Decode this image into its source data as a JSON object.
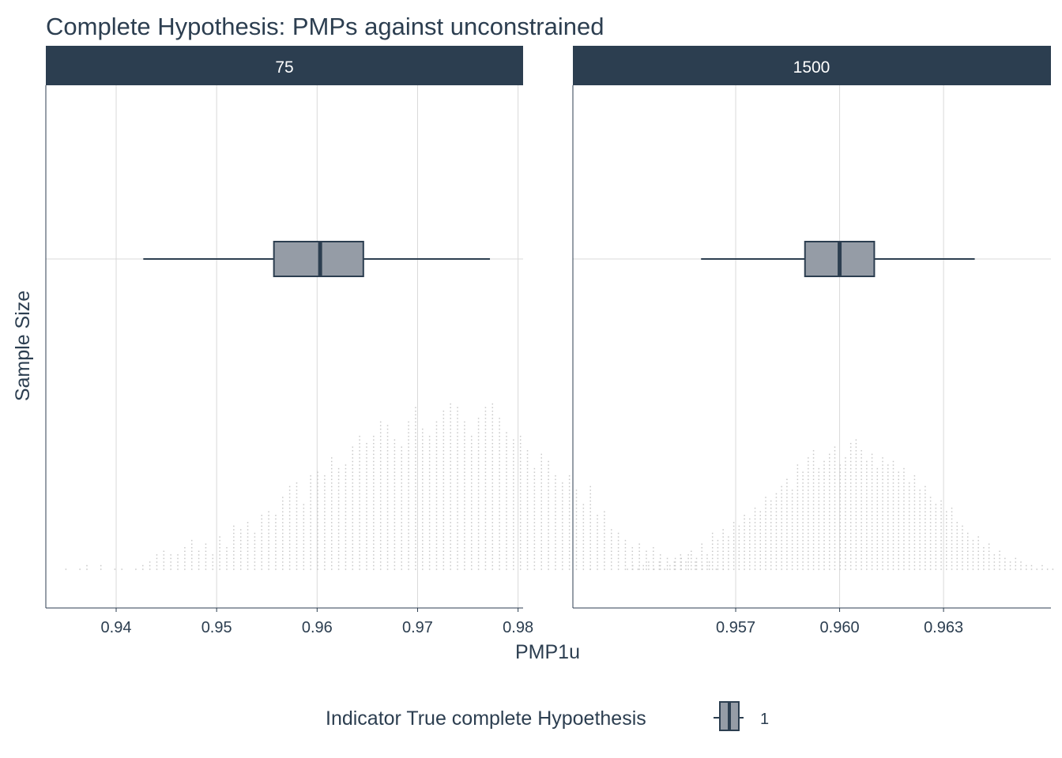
{
  "chart_data": {
    "type": "boxplot-dotplot",
    "title": "Complete Hypothesis: PMPs against unconstrained",
    "xlabel": "PMP1u",
    "ylabel": "Sample Size",
    "legend": {
      "title": "Indicator True complete Hypoethesis",
      "items": [
        {
          "label": "1",
          "color": "#959ca6"
        }
      ],
      "placement": "bottom"
    },
    "colors": {
      "strip": "#2c3e50",
      "box": "#959ca6",
      "dots": "#c8c8c8",
      "grid": "#d9d9d9",
      "text": "#2c3e50"
    },
    "panels": [
      {
        "strip_label": "75",
        "xlim": [
          0.933,
          0.9805
        ],
        "x_ticks": [
          0.94,
          0.95,
          0.96,
          0.97,
          0.98
        ],
        "x_tick_labels": [
          "0.94",
          "0.95",
          "0.96",
          "0.97",
          "0.98"
        ],
        "box": {
          "whisker_low": 0.9427,
          "q1": 0.9557,
          "median": 0.9603,
          "q3": 0.9646,
          "whisker_high": 0.9772
        },
        "dots": {
          "x_start": 0.935,
          "x_step": 0.000696,
          "counts": [
            1,
            0,
            1,
            2,
            0,
            2,
            0,
            1,
            1,
            0,
            1,
            2,
            3,
            5,
            6,
            5,
            5,
            7,
            9,
            6,
            8,
            5,
            10,
            7,
            13,
            12,
            14,
            11,
            16,
            17,
            16,
            21,
            24,
            25,
            19,
            27,
            28,
            27,
            32,
            29,
            30,
            35,
            38,
            36,
            38,
            42,
            41,
            37,
            35,
            42,
            46,
            40,
            38,
            42,
            45,
            47,
            46,
            42,
            38,
            43,
            46,
            47,
            43,
            39,
            37,
            38,
            34,
            29,
            33,
            31,
            27,
            25,
            27,
            23,
            19,
            24,
            16,
            17,
            12,
            11,
            9,
            7,
            8,
            6,
            7,
            5,
            4,
            3,
            4,
            5,
            3,
            2,
            3,
            1,
            2
          ]
        }
      },
      {
        "strip_label": "1500",
        "xlim": [
          0.9523,
          0.9661
        ],
        "x_ticks": [
          0.957,
          0.96,
          0.963
        ],
        "x_tick_labels": [
          "0.957",
          "0.960",
          "0.963"
        ],
        "box": {
          "whisker_low": 0.956,
          "q1": 0.959,
          "median": 0.96,
          "q3": 0.961,
          "whisker_high": 0.9639
        },
        "dots": {
          "x_start": 0.9528,
          "x_step": 0.0001535,
          "counts": [
            1,
            0,
            0,
            0,
            0,
            0,
            0,
            1,
            2,
            1,
            2,
            3,
            1,
            3,
            1,
            2,
            4,
            5,
            3,
            6,
            4,
            8,
            5,
            11,
            9,
            12,
            10,
            14,
            13,
            16,
            15,
            18,
            17,
            21,
            20,
            22,
            24,
            26,
            23,
            30,
            28,
            32,
            34,
            29,
            31,
            33,
            35,
            30,
            32,
            36,
            37,
            34,
            31,
            33,
            29,
            32,
            30,
            31,
            28,
            29,
            25,
            27,
            23,
            24,
            21,
            19,
            20,
            17,
            18,
            14,
            13,
            11,
            9,
            10,
            7,
            8,
            5,
            6,
            4,
            3,
            4,
            3,
            2,
            2,
            1,
            2,
            1,
            1,
            0,
            0,
            0,
            0,
            0,
            0,
            0,
            0,
            0,
            0,
            0,
            0,
            0,
            0,
            0,
            0,
            1
          ]
        }
      }
    ]
  }
}
